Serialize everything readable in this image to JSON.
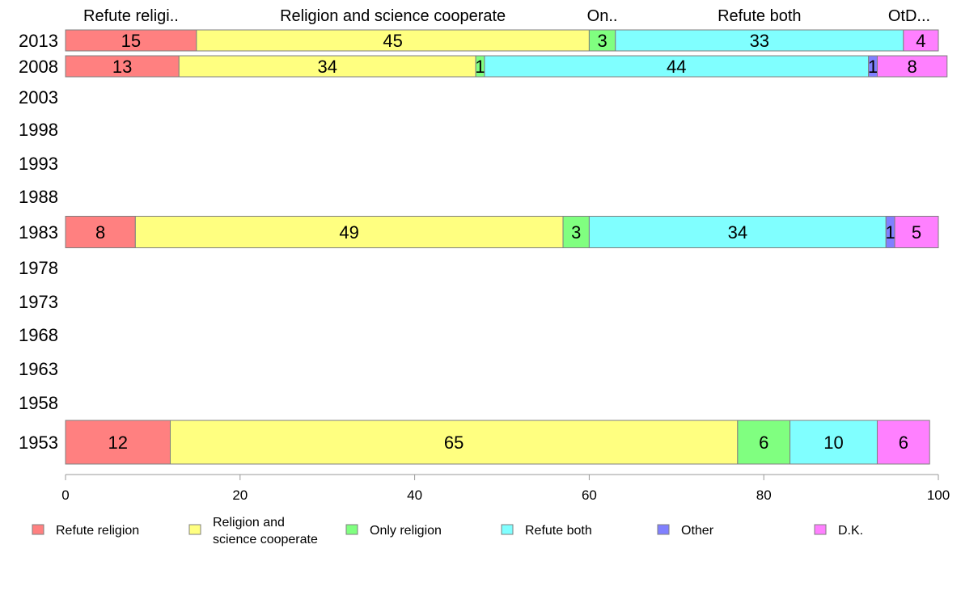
{
  "chart_data": {
    "type": "bar",
    "orientation": "horizontal",
    "stacked": true,
    "categories": [
      "2013",
      "2008",
      "2003",
      "1998",
      "1993",
      "1988",
      "1983",
      "1978",
      "1973",
      "1968",
      "1963",
      "1958",
      "1953"
    ],
    "series": [
      {
        "name": "Refute religion",
        "color": "#ff8080",
        "values": [
          15,
          13,
          null,
          null,
          null,
          null,
          8,
          null,
          null,
          null,
          null,
          null,
          12
        ]
      },
      {
        "name": "Religion and\nscience cooperate",
        "color": "#ffff80",
        "values": [
          45,
          34,
          null,
          null,
          null,
          null,
          49,
          null,
          null,
          null,
          null,
          null,
          65
        ]
      },
      {
        "name": "Only religion",
        "color": "#80ff80",
        "values": [
          3,
          1,
          null,
          null,
          null,
          null,
          3,
          null,
          null,
          null,
          null,
          null,
          6
        ]
      },
      {
        "name": "Refute both",
        "color": "#80ffff",
        "values": [
          33,
          44,
          null,
          null,
          null,
          null,
          34,
          null,
          null,
          null,
          null,
          null,
          10
        ]
      },
      {
        "name": "Other",
        "color": "#8080ff",
        "values": [
          0,
          1,
          null,
          null,
          null,
          null,
          1,
          null,
          null,
          null,
          null,
          null,
          0
        ]
      },
      {
        "name": "D.K.",
        "color": "#ff80ff",
        "values": [
          4,
          8,
          null,
          null,
          null,
          null,
          5,
          null,
          null,
          null,
          null,
          null,
          6
        ]
      }
    ],
    "top_labels": [
      "Refute religi..",
      "Religion and science cooperate",
      "On..",
      "Refute both",
      "OtD..."
    ],
    "xlim": [
      0,
      100
    ],
    "xticks": [
      "0",
      "20",
      "40",
      "60",
      "80",
      "100"
    ],
    "legend_position": "bottom",
    "grid": false
  }
}
